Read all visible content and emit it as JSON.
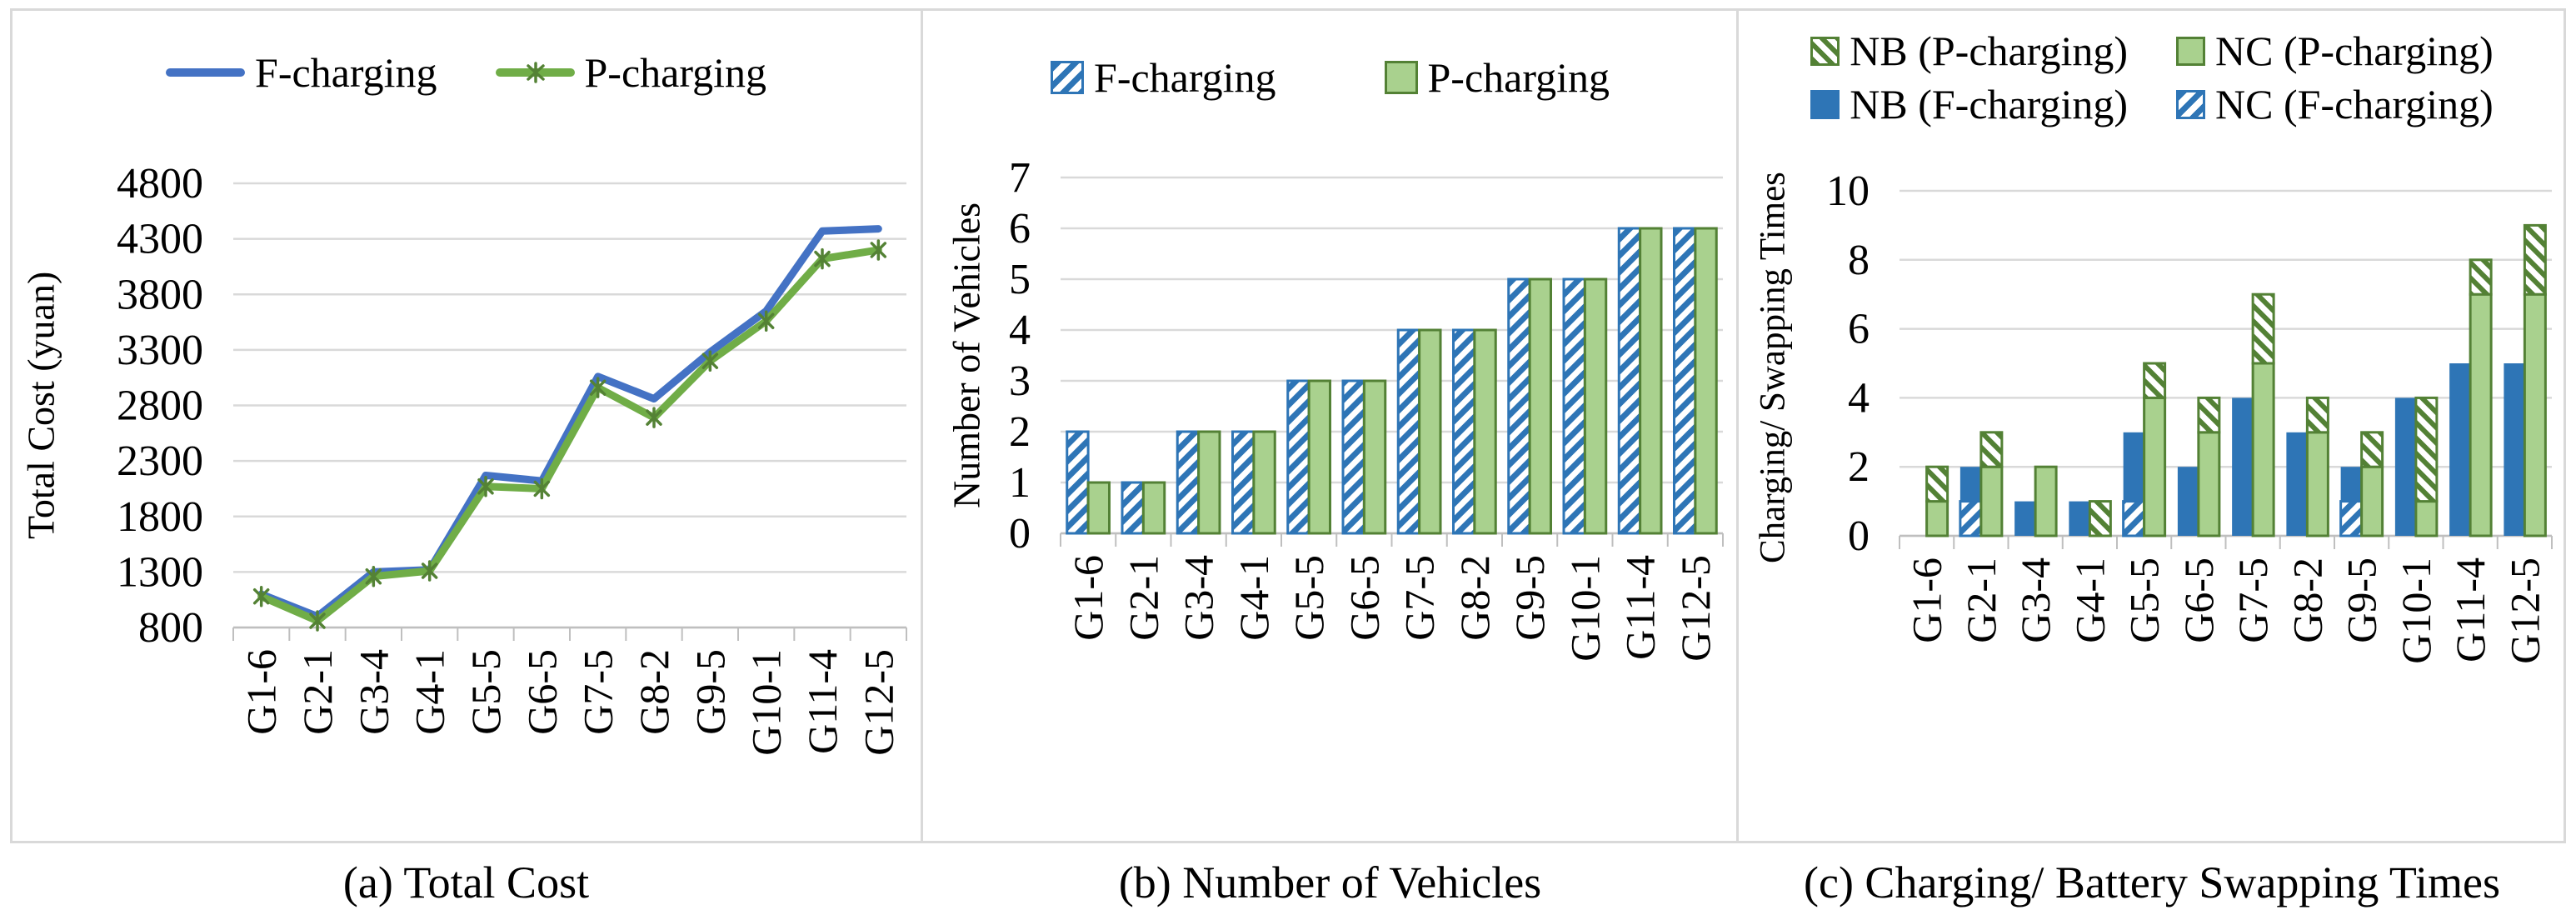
{
  "figure": {
    "background": "#ffffff",
    "frame_color": "#d9d9d9"
  },
  "colors": {
    "line_blue": "#4472C4",
    "line_green": "#70AD47",
    "marker_dark_green": "#548235",
    "bar_solid_blue": "#2E75B6",
    "bar_solid_green_fill": "#A9D18E",
    "bar_green_border": "#538135",
    "gridline": "#d9d9d9",
    "axis": "#bfbfbf",
    "text": "#000000"
  },
  "chart_data": [
    {
      "type": "line",
      "caption": "(a) Total Cost",
      "ylabel": "Total Cost (yuan)",
      "categories": [
        "G1-6",
        "G2-1",
        "G3-4",
        "G4-1",
        "G5-5",
        "G6-5",
        "G7-5",
        "G8-2",
        "G9-5",
        "G10-1",
        "G11-4",
        "G12-5"
      ],
      "ylim": [
        800,
        4800
      ],
      "ystep": 500,
      "yticks": [
        800,
        1300,
        1800,
        2300,
        2800,
        3300,
        3800,
        4300,
        4800
      ],
      "grid": "horizontal",
      "legend_position": "top",
      "series": [
        {
          "name": "F-charging",
          "style": "line-blue",
          "color": "#4472C4",
          "marker": "none",
          "values": [
            1100,
            900,
            1300,
            1320,
            2170,
            2120,
            3060,
            2860,
            3280,
            3650,
            4370,
            4390
          ]
        },
        {
          "name": "P-charging",
          "style": "line-green",
          "color": "#70AD47",
          "marker": "asterisk",
          "marker_color": "#548235",
          "values": [
            1080,
            860,
            1260,
            1310,
            2070,
            2050,
            2960,
            2690,
            3200,
            3560,
            4120,
            4200
          ]
        }
      ]
    },
    {
      "type": "bar",
      "caption": "(b) Number of Vehicles",
      "ylabel": "Number of  Vehicles",
      "categories": [
        "G1-6",
        "G2-1",
        "G3-4",
        "G4-1",
        "G5-5",
        "G6-5",
        "G7-5",
        "G8-2",
        "G9-5",
        "G10-1",
        "G11-4",
        "G12-5"
      ],
      "ylim": [
        0,
        7
      ],
      "ystep": 1,
      "yticks": [
        0,
        1,
        2,
        3,
        4,
        5,
        6,
        7
      ],
      "grid": "horizontal",
      "legend_position": "top",
      "bar_order": [
        "F",
        "P"
      ],
      "stack_order": {
        "F": [
          "F-charging"
        ],
        "P": [
          "P-charging"
        ]
      },
      "series": [
        {
          "name": "F-charging",
          "style": "hatch-blue",
          "bar": "F",
          "values": [
            2,
            1,
            2,
            2,
            3,
            3,
            4,
            4,
            5,
            5,
            6,
            6
          ]
        },
        {
          "name": "P-charging",
          "style": "solid-green",
          "bar": "P",
          "values": [
            1,
            1,
            2,
            2,
            3,
            3,
            4,
            4,
            5,
            5,
            6,
            6
          ]
        }
      ]
    },
    {
      "type": "stacked-bar",
      "caption": "(c) Charging/ Battery Swapping Times",
      "ylabel": "Charging/ Swapping Times",
      "categories": [
        "G1-6",
        "G2-1",
        "G3-4",
        "G4-1",
        "G5-5",
        "G6-5",
        "G7-5",
        "G8-2",
        "G9-5",
        "G10-1",
        "G11-4",
        "G12-5"
      ],
      "ylim": [
        0,
        10
      ],
      "ystep": 2,
      "yticks": [
        0,
        2,
        4,
        6,
        8,
        10
      ],
      "grid": "horizontal",
      "legend_position": "top",
      "bar_order": [
        "F",
        "P"
      ],
      "stack_order": {
        "F": [
          "NC (F-charging)",
          "NB (F-charging)"
        ],
        "P": [
          "NC (P-charging)",
          "NB (P-charging)"
        ]
      },
      "series": [
        {
          "name": "NB (P-charging)",
          "style": "hatch-green",
          "bar": "P",
          "values": [
            1,
            1,
            0,
            1,
            1,
            1,
            2,
            1,
            1,
            3,
            1,
            2
          ]
        },
        {
          "name": "NC (P-charging)",
          "style": "solid-green",
          "bar": "P",
          "values": [
            1,
            2,
            2,
            0,
            4,
            3,
            5,
            3,
            2,
            1,
            7,
            7
          ]
        },
        {
          "name": "NB (F-charging)",
          "style": "solid-blue",
          "bar": "F",
          "values": [
            0,
            1,
            1,
            1,
            2,
            2,
            4,
            3,
            1,
            4,
            5,
            5
          ]
        },
        {
          "name": "NC (F-charging)",
          "style": "hatch-blue",
          "bar": "F",
          "values": [
            0,
            1,
            0,
            0,
            1,
            0,
            0,
            0,
            1,
            0,
            0,
            0
          ]
        }
      ]
    }
  ]
}
